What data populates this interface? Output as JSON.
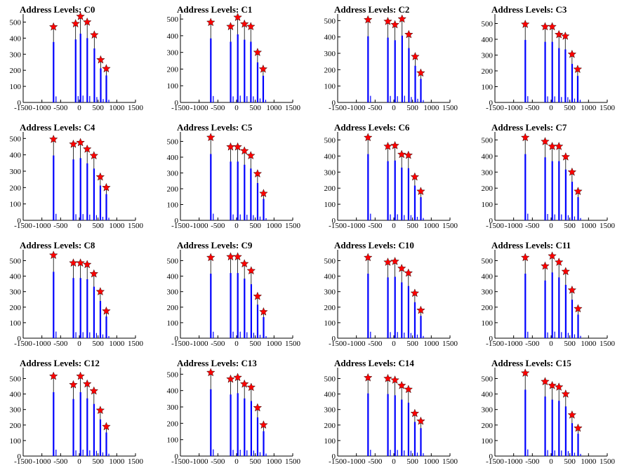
{
  "chart_data": [
    {
      "type": "bar",
      "title": "Address Levels: C0",
      "x": [
        -690,
        -100,
        30,
        210,
        400,
        570,
        720
      ],
      "values": [
        470,
        490,
        535,
        500,
        420,
        265,
        210
      ],
      "xlim": [
        -1500,
        1500
      ],
      "ylim": [
        0,
        550
      ],
      "xticks": [
        -1500,
        -1000,
        -500,
        0,
        500,
        1000,
        1500
      ],
      "yticks": [
        0,
        100,
        200,
        300,
        400,
        500
      ]
    },
    {
      "type": "bar",
      "title": "Address Levels: C1",
      "x": [
        -690,
        -160,
        30,
        210,
        380,
        560,
        710
      ],
      "values": [
        480,
        455,
        510,
        470,
        455,
        300,
        200
      ],
      "xlim": [
        -1500,
        1500
      ],
      "ylim": [
        0,
        530
      ],
      "xticks": [
        -1500,
        -1000,
        -500,
        0,
        500,
        1000,
        1500
      ],
      "yticks": [
        0,
        100,
        200,
        300,
        400,
        500
      ]
    },
    {
      "type": "bar",
      "title": "Address Levels: C2",
      "x": [
        -690,
        -160,
        30,
        220,
        400,
        570,
        720
      ],
      "values": [
        505,
        495,
        475,
        510,
        415,
        280,
        180
      ],
      "xlim": [
        -1500,
        1500
      ],
      "ylim": [
        0,
        540
      ],
      "xticks": [
        -1500,
        -1000,
        -500,
        0,
        500,
        1000,
        1500
      ],
      "yticks": [
        0,
        100,
        200,
        300,
        400,
        500
      ]
    },
    {
      "type": "bar",
      "title": "Address Levels: C3",
      "x": [
        -690,
        -160,
        30,
        210,
        380,
        560,
        710
      ],
      "values": [
        495,
        480,
        480,
        430,
        420,
        305,
        210
      ],
      "xlim": [
        -1500,
        1500
      ],
      "ylim": [
        0,
        560
      ],
      "xticks": [
        -1500,
        -1000,
        -500,
        0,
        500,
        1000,
        1500
      ],
      "yticks": [
        0,
        100,
        200,
        300,
        400,
        500
      ]
    },
    {
      "type": "bar",
      "title": "Address Levels: C4",
      "x": [
        -690,
        -160,
        30,
        210,
        390,
        560,
        720
      ],
      "values": [
        495,
        465,
        475,
        435,
        395,
        265,
        200
      ],
      "xlim": [
        -1500,
        1500
      ],
      "ylim": [
        0,
        540
      ],
      "xticks": [
        -1500,
        -1000,
        -500,
        0,
        500,
        1000,
        1500
      ],
      "yticks": [
        0,
        100,
        200,
        300,
        400,
        500
      ]
    },
    {
      "type": "bar",
      "title": "Address Levels: C5",
      "x": [
        -690,
        -160,
        30,
        210,
        380,
        560,
        720
      ],
      "values": [
        525,
        465,
        465,
        440,
        410,
        295,
        170
      ],
      "xlim": [
        -1500,
        1500
      ],
      "ylim": [
        0,
        560
      ],
      "xticks": [
        -1500,
        -1000,
        -500,
        0,
        500,
        1000,
        1500
      ],
      "yticks": [
        0,
        100,
        200,
        300,
        400,
        500
      ]
    },
    {
      "type": "bar",
      "title": "Address Levels: C6",
      "x": [
        -690,
        -160,
        30,
        210,
        390,
        560,
        720
      ],
      "values": [
        515,
        460,
        465,
        410,
        405,
        270,
        180
      ],
      "xlim": [
        -1500,
        1500
      ],
      "ylim": [
        0,
        550
      ],
      "xticks": [
        -1500,
        -1000,
        -500,
        0,
        500,
        1000,
        1500
      ],
      "yticks": [
        0,
        100,
        200,
        300,
        400,
        500
      ]
    },
    {
      "type": "bar",
      "title": "Address Levels: C7",
      "x": [
        -690,
        -160,
        30,
        210,
        390,
        560,
        720
      ],
      "values": [
        515,
        490,
        460,
        460,
        395,
        300,
        180
      ],
      "xlim": [
        -1500,
        1500
      ],
      "ylim": [
        0,
        550
      ],
      "xticks": [
        -1500,
        -1000,
        -500,
        0,
        500,
        1000,
        1500
      ],
      "yticks": [
        0,
        100,
        200,
        300,
        400,
        500
      ]
    },
    {
      "type": "bar",
      "title": "Address Levels: C8",
      "x": [
        -690,
        -160,
        30,
        210,
        390,
        560,
        720
      ],
      "values": [
        535,
        485,
        485,
        475,
        415,
        300,
        175
      ],
      "xlim": [
        -1500,
        1500
      ],
      "ylim": [
        0,
        570
      ],
      "xticks": [
        -1500,
        -1000,
        -500,
        0,
        500,
        1000,
        1500
      ],
      "yticks": [
        0,
        100,
        200,
        300,
        400,
        500
      ]
    },
    {
      "type": "bar",
      "title": "Address Levels: C9",
      "x": [
        -690,
        -160,
        30,
        210,
        390,
        560,
        720
      ],
      "values": [
        520,
        525,
        525,
        480,
        435,
        270,
        170
      ],
      "xlim": [
        -1500,
        1500
      ],
      "ylim": [
        0,
        570
      ],
      "xticks": [
        -1500,
        -1000,
        -500,
        0,
        500,
        1000,
        1500
      ],
      "yticks": [
        0,
        100,
        200,
        300,
        400,
        500
      ]
    },
    {
      "type": "bar",
      "title": "Address Levels: C10",
      "x": [
        -690,
        -160,
        30,
        210,
        390,
        560,
        720
      ],
      "values": [
        520,
        490,
        495,
        450,
        420,
        290,
        180
      ],
      "xlim": [
        -1500,
        1500
      ],
      "ylim": [
        0,
        570
      ],
      "xticks": [
        -1500,
        -1000,
        -500,
        0,
        500,
        1000,
        1500
      ],
      "yticks": [
        0,
        100,
        200,
        300,
        400,
        500
      ]
    },
    {
      "type": "bar",
      "title": "Address Levels: C11",
      "x": [
        -690,
        -160,
        30,
        210,
        390,
        560,
        720
      ],
      "values": [
        520,
        465,
        530,
        490,
        430,
        310,
        190
      ],
      "xlim": [
        -1500,
        1500
      ],
      "ylim": [
        0,
        570
      ],
      "xticks": [
        -1500,
        -1000,
        -500,
        0,
        500,
        1000,
        1500
      ],
      "yticks": [
        0,
        100,
        200,
        300,
        400,
        500
      ]
    },
    {
      "type": "bar",
      "title": "Address Levels: C12",
      "x": [
        -690,
        -160,
        30,
        210,
        390,
        560,
        720
      ],
      "values": [
        515,
        460,
        515,
        465,
        420,
        295,
        190
      ],
      "xlim": [
        -1500,
        1500
      ],
      "ylim": [
        0,
        570
      ],
      "xticks": [
        -1500,
        -1000,
        -500,
        0,
        500,
        1000,
        1500
      ],
      "yticks": [
        0,
        100,
        200,
        300,
        400,
        500
      ]
    },
    {
      "type": "bar",
      "title": "Address Levels: C13",
      "x": [
        -690,
        -160,
        30,
        210,
        390,
        560,
        720
      ],
      "values": [
        510,
        470,
        480,
        440,
        420,
        295,
        190
      ],
      "xlim": [
        -1500,
        1500
      ],
      "ylim": [
        0,
        540
      ],
      "xticks": [
        -1500,
        -1000,
        -500,
        0,
        500,
        1000,
        1500
      ],
      "yticks": [
        0,
        100,
        200,
        300,
        400,
        500
      ]
    },
    {
      "type": "bar",
      "title": "Address Levels: C14",
      "x": [
        -690,
        -160,
        30,
        210,
        390,
        560,
        720
      ],
      "values": [
        505,
        500,
        490,
        455,
        430,
        275,
        225
      ],
      "xlim": [
        -1500,
        1500
      ],
      "ylim": [
        0,
        570
      ],
      "xticks": [
        -1500,
        -1000,
        -500,
        0,
        500,
        1000,
        1500
      ],
      "yticks": [
        0,
        100,
        200,
        300,
        400,
        500
      ]
    },
    {
      "type": "bar",
      "title": "Address Levels: C15",
      "x": [
        -690,
        -160,
        30,
        210,
        390,
        560,
        720
      ],
      "values": [
        535,
        480,
        455,
        445,
        400,
        265,
        180
      ],
      "xlim": [
        -1500,
        1500
      ],
      "ylim": [
        0,
        570
      ],
      "xticks": [
        -1500,
        -1000,
        -500,
        0,
        500,
        1000,
        1500
      ],
      "yticks": [
        0,
        100,
        200,
        300,
        400,
        500
      ]
    }
  ],
  "style": {
    "bar_color": "#0000ff",
    "marker_color": "#ff0000",
    "marker_stroke": "#000000",
    "stem_color": "#000000",
    "axis_color": "#000000"
  }
}
